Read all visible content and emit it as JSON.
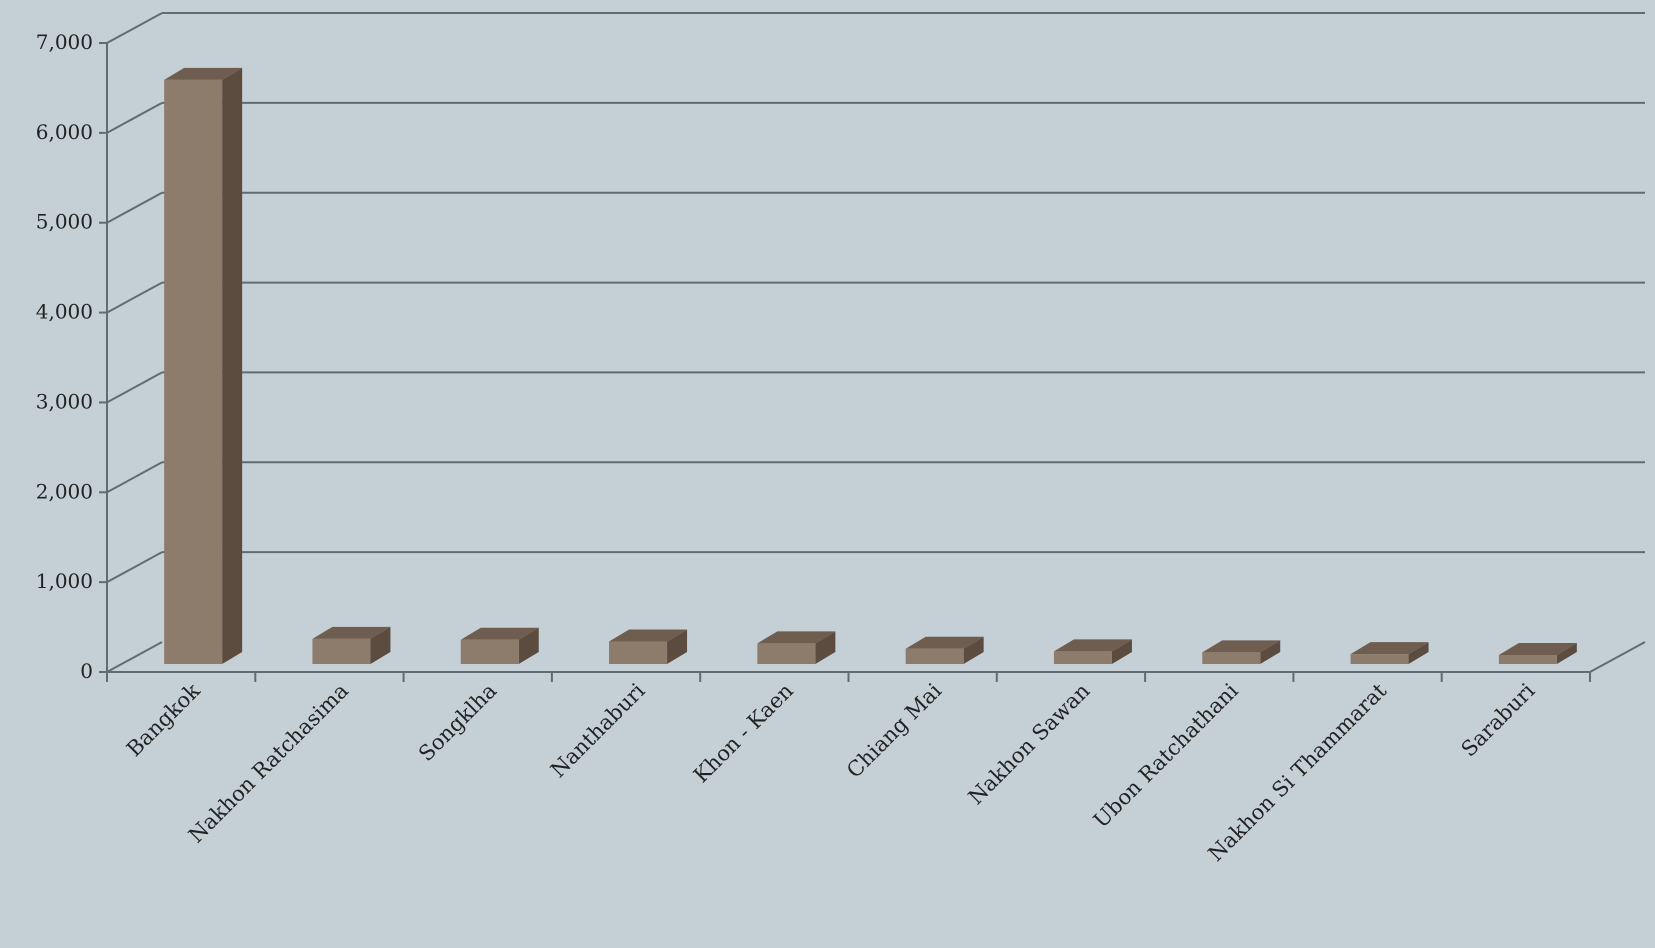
{
  "chart_data": {
    "type": "bar",
    "style": "3d-column",
    "title": "",
    "xlabel": "",
    "ylabel": "",
    "categories": [
      "Bangkok",
      "Nakhon Ratchasima",
      "Songklha",
      "Nanthaburi",
      "Khon - Kaen",
      "Chiang Mai",
      "Nakhon Sawan",
      "Ubon Ratchathani",
      "Nakhon Si Thammarat",
      "Saraburi"
    ],
    "values": [
      6500,
      280,
      270,
      250,
      230,
      170,
      140,
      130,
      110,
      100
    ],
    "ylim": [
      0,
      7000
    ],
    "yticks": [
      0,
      1000,
      2000,
      3000,
      4000,
      5000,
      6000,
      7000
    ],
    "ytick_labels": [
      "0",
      "1,000",
      "2,000",
      "3,000",
      "4,000",
      "5,000",
      "6,000",
      "7,000"
    ],
    "grid": true,
    "legend": "none",
    "colors": {
      "background": "#c5d0d6",
      "bar_front": "#8d7b6c",
      "bar_side": "#5c4c40",
      "bar_top": "#6f5d50",
      "grid": "#5f6c75",
      "text": "#222222"
    }
  }
}
